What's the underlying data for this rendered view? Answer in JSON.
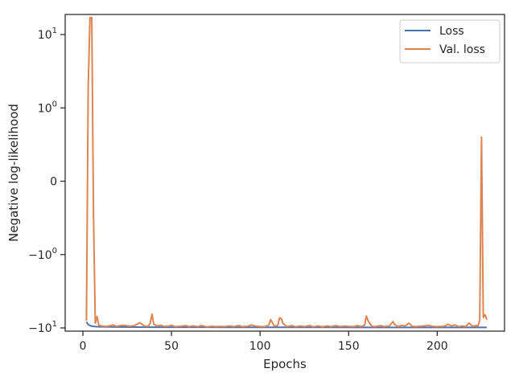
{
  "chart_data": {
    "type": "line",
    "xlabel": "Epochs",
    "ylabel": "Negative log-likelihood",
    "xlim": [
      -10,
      238
    ],
    "x_ticks": [
      0,
      50,
      100,
      150,
      200
    ],
    "y_scale": "symlog",
    "y_ticks": [
      {
        "value": 10,
        "base": "10",
        "sup": "1",
        "prefix": ""
      },
      {
        "value": 1,
        "base": "10",
        "sup": "0",
        "prefix": ""
      },
      {
        "value": 0,
        "base": "0",
        "sup": "",
        "prefix": ""
      },
      {
        "value": -1,
        "base": "10",
        "sup": "0",
        "prefix": "−"
      },
      {
        "value": -10,
        "base": "10",
        "sup": "1",
        "prefix": "−"
      }
    ],
    "legend_position": "top-right",
    "series": [
      {
        "name": "Loss",
        "color": "#4c72b0",
        "points": [
          [
            2,
            -8.3
          ],
          [
            3,
            -9.0
          ],
          [
            4,
            -9.3
          ],
          [
            5,
            -9.45
          ],
          [
            6,
            -9.55
          ],
          [
            8,
            -9.62
          ],
          [
            10,
            -9.66
          ],
          [
            15,
            -9.7
          ],
          [
            20,
            -9.72
          ],
          [
            30,
            -9.75
          ],
          [
            40,
            -9.77
          ],
          [
            50,
            -9.78
          ],
          [
            60,
            -9.79
          ],
          [
            80,
            -9.8
          ],
          [
            100,
            -9.81
          ],
          [
            120,
            -9.82
          ],
          [
            140,
            -9.82
          ],
          [
            160,
            -9.83
          ],
          [
            180,
            -9.83
          ],
          [
            200,
            -9.84
          ],
          [
            215,
            -9.84
          ],
          [
            225,
            -9.83
          ],
          [
            228,
            -9.83
          ]
        ]
      },
      {
        "name": "Val. loss",
        "color": "#dd8452",
        "points": [
          [
            2,
            -8.0
          ],
          [
            3,
            2.0
          ],
          [
            4,
            17.0
          ],
          [
            5,
            17.0
          ],
          [
            6,
            -0.5
          ],
          [
            7,
            -8.6
          ],
          [
            8,
            -7.0
          ],
          [
            9,
            -9.2
          ],
          [
            11,
            -9.45
          ],
          [
            13,
            -9.5
          ],
          [
            15,
            -9.4
          ],
          [
            17,
            -9.1
          ],
          [
            19,
            -9.5
          ],
          [
            21,
            -9.3
          ],
          [
            23,
            -9.2
          ],
          [
            25,
            -9.35
          ],
          [
            27,
            -9.45
          ],
          [
            29,
            -9.3
          ],
          [
            31,
            -8.8
          ],
          [
            32,
            -8.5
          ],
          [
            33,
            -8.8
          ],
          [
            35,
            -9.5
          ],
          [
            37,
            -9.45
          ],
          [
            38,
            -8.6
          ],
          [
            39,
            -6.5
          ],
          [
            40,
            -8.9
          ],
          [
            42,
            -9.4
          ],
          [
            44,
            -9.2
          ],
          [
            46,
            -9.55
          ],
          [
            48,
            -9.5
          ],
          [
            50,
            -9.2
          ],
          [
            52,
            -9.6
          ],
          [
            55,
            -9.5
          ],
          [
            58,
            -9.3
          ],
          [
            60,
            -9.6
          ],
          [
            62,
            -9.4
          ],
          [
            65,
            -9.6
          ],
          [
            67,
            -9.3
          ],
          [
            70,
            -9.7
          ],
          [
            73,
            -9.5
          ],
          [
            75,
            -9.6
          ],
          [
            78,
            -9.55
          ],
          [
            80,
            -9.6
          ],
          [
            83,
            -9.4
          ],
          [
            85,
            -9.6
          ],
          [
            88,
            -9.3
          ],
          [
            90,
            -9.6
          ],
          [
            93,
            -9.5
          ],
          [
            95,
            -9.1
          ],
          [
            97,
            -9.4
          ],
          [
            100,
            -9.6
          ],
          [
            103,
            -9.6
          ],
          [
            105,
            -9.1
          ],
          [
            106,
            -7.7
          ],
          [
            108,
            -9.45
          ],
          [
            110,
            -9.3
          ],
          [
            111,
            -7.3
          ],
          [
            112,
            -7.5
          ],
          [
            113,
            -8.7
          ],
          [
            115,
            -9.6
          ],
          [
            118,
            -9.3
          ],
          [
            120,
            -9.65
          ],
          [
            123,
            -9.4
          ],
          [
            125,
            -9.6
          ],
          [
            128,
            -9.3
          ],
          [
            130,
            -9.65
          ],
          [
            133,
            -9.4
          ],
          [
            135,
            -9.65
          ],
          [
            138,
            -9.4
          ],
          [
            140,
            -9.6
          ],
          [
            143,
            -9.3
          ],
          [
            145,
            -9.6
          ],
          [
            148,
            -9.45
          ],
          [
            150,
            -9.55
          ],
          [
            153,
            -9.6
          ],
          [
            155,
            -9.3
          ],
          [
            157,
            -9.6
          ],
          [
            159,
            -9.2
          ],
          [
            160,
            -6.9
          ],
          [
            161,
            -8.0
          ],
          [
            163,
            -9.5
          ],
          [
            165,
            -9.6
          ],
          [
            168,
            -9.3
          ],
          [
            170,
            -9.6
          ],
          [
            173,
            -9.4
          ],
          [
            175,
            -8.2
          ],
          [
            176,
            -9.0
          ],
          [
            178,
            -9.6
          ],
          [
            180,
            -9.2
          ],
          [
            182,
            -9.4
          ],
          [
            184,
            -8.6
          ],
          [
            186,
            -9.55
          ],
          [
            188,
            -9.6
          ],
          [
            190,
            -9.5
          ],
          [
            193,
            -9.4
          ],
          [
            195,
            -9.2
          ],
          [
            197,
            -9.5
          ],
          [
            200,
            -9.6
          ],
          [
            203,
            -9.55
          ],
          [
            205,
            -9.3
          ],
          [
            206,
            -8.9
          ],
          [
            208,
            -9.4
          ],
          [
            210,
            -9.1
          ],
          [
            212,
            -9.6
          ],
          [
            214,
            -9.4
          ],
          [
            216,
            -9.6
          ],
          [
            218,
            -8.6
          ],
          [
            220,
            -9.5
          ],
          [
            222,
            -9.3
          ],
          [
            223,
            -9.4
          ],
          [
            224,
            -7.8
          ],
          [
            225,
            0.6
          ],
          [
            226,
            -7.2
          ],
          [
            227,
            -6.6
          ],
          [
            228,
            -7.7
          ]
        ]
      }
    ]
  }
}
